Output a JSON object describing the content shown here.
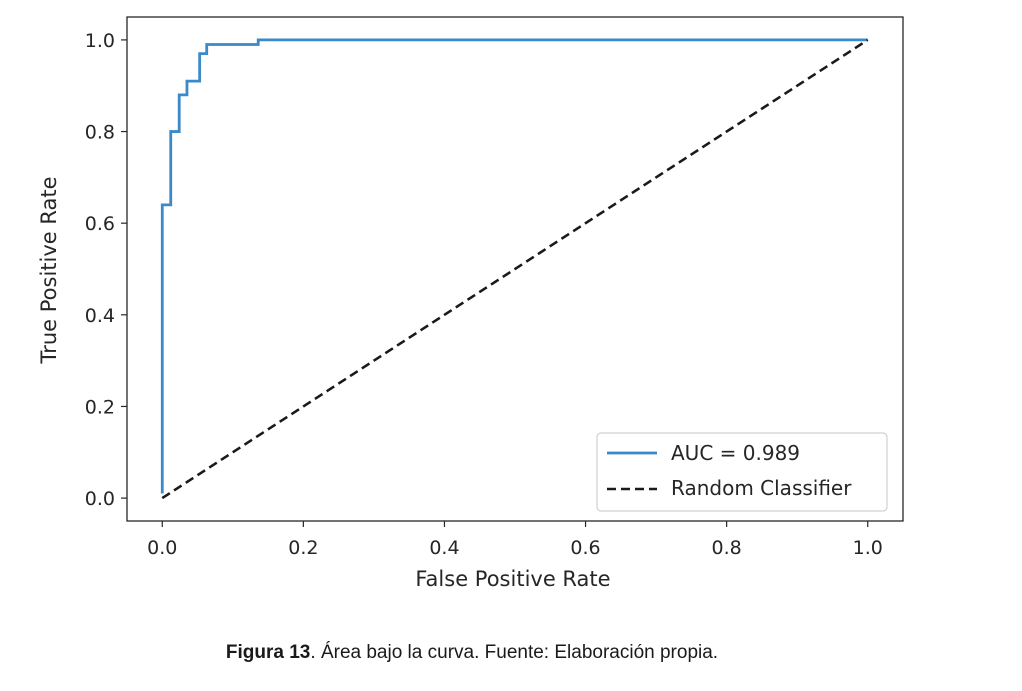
{
  "chart_data": {
    "type": "line",
    "xlabel": "False Positive Rate",
    "ylabel": "True Positive Rate",
    "xlim": [
      -0.05,
      1.05
    ],
    "ylim": [
      -0.05,
      1.05
    ],
    "xticks": [
      0.0,
      0.2,
      0.4,
      0.6,
      0.8,
      1.0
    ],
    "yticks": [
      0.0,
      0.2,
      0.4,
      0.6,
      0.8,
      1.0
    ],
    "xtick_labels": [
      "0.0",
      "0.2",
      "0.4",
      "0.6",
      "0.8",
      "1.0"
    ],
    "ytick_labels": [
      "0.0",
      "0.2",
      "0.4",
      "0.6",
      "0.8",
      "1.0"
    ],
    "grid": false,
    "legend_position": "lower-right",
    "series": [
      {
        "name": "AUC = 0.989",
        "color": "#3a89c9",
        "style": "solid",
        "x": [
          0.0,
          0.0,
          0.0,
          0.012,
          0.012,
          0.024,
          0.024,
          0.035,
          0.035,
          0.053,
          0.053,
          0.063,
          0.063,
          0.136,
          0.136,
          1.0
        ],
        "y": [
          0.01,
          0.64,
          0.64,
          0.64,
          0.8,
          0.8,
          0.88,
          0.88,
          0.91,
          0.91,
          0.97,
          0.97,
          0.99,
          0.99,
          1.0,
          1.0
        ]
      },
      {
        "name": "Random Classifier",
        "color": "#1a1a1a",
        "style": "dashed",
        "x": [
          0.0,
          1.0
        ],
        "y": [
          0.0,
          1.0
        ]
      }
    ]
  },
  "caption": {
    "label": "Figura 13",
    "text": ". Área bajo la curva. Fuente: Elaboración propia."
  }
}
